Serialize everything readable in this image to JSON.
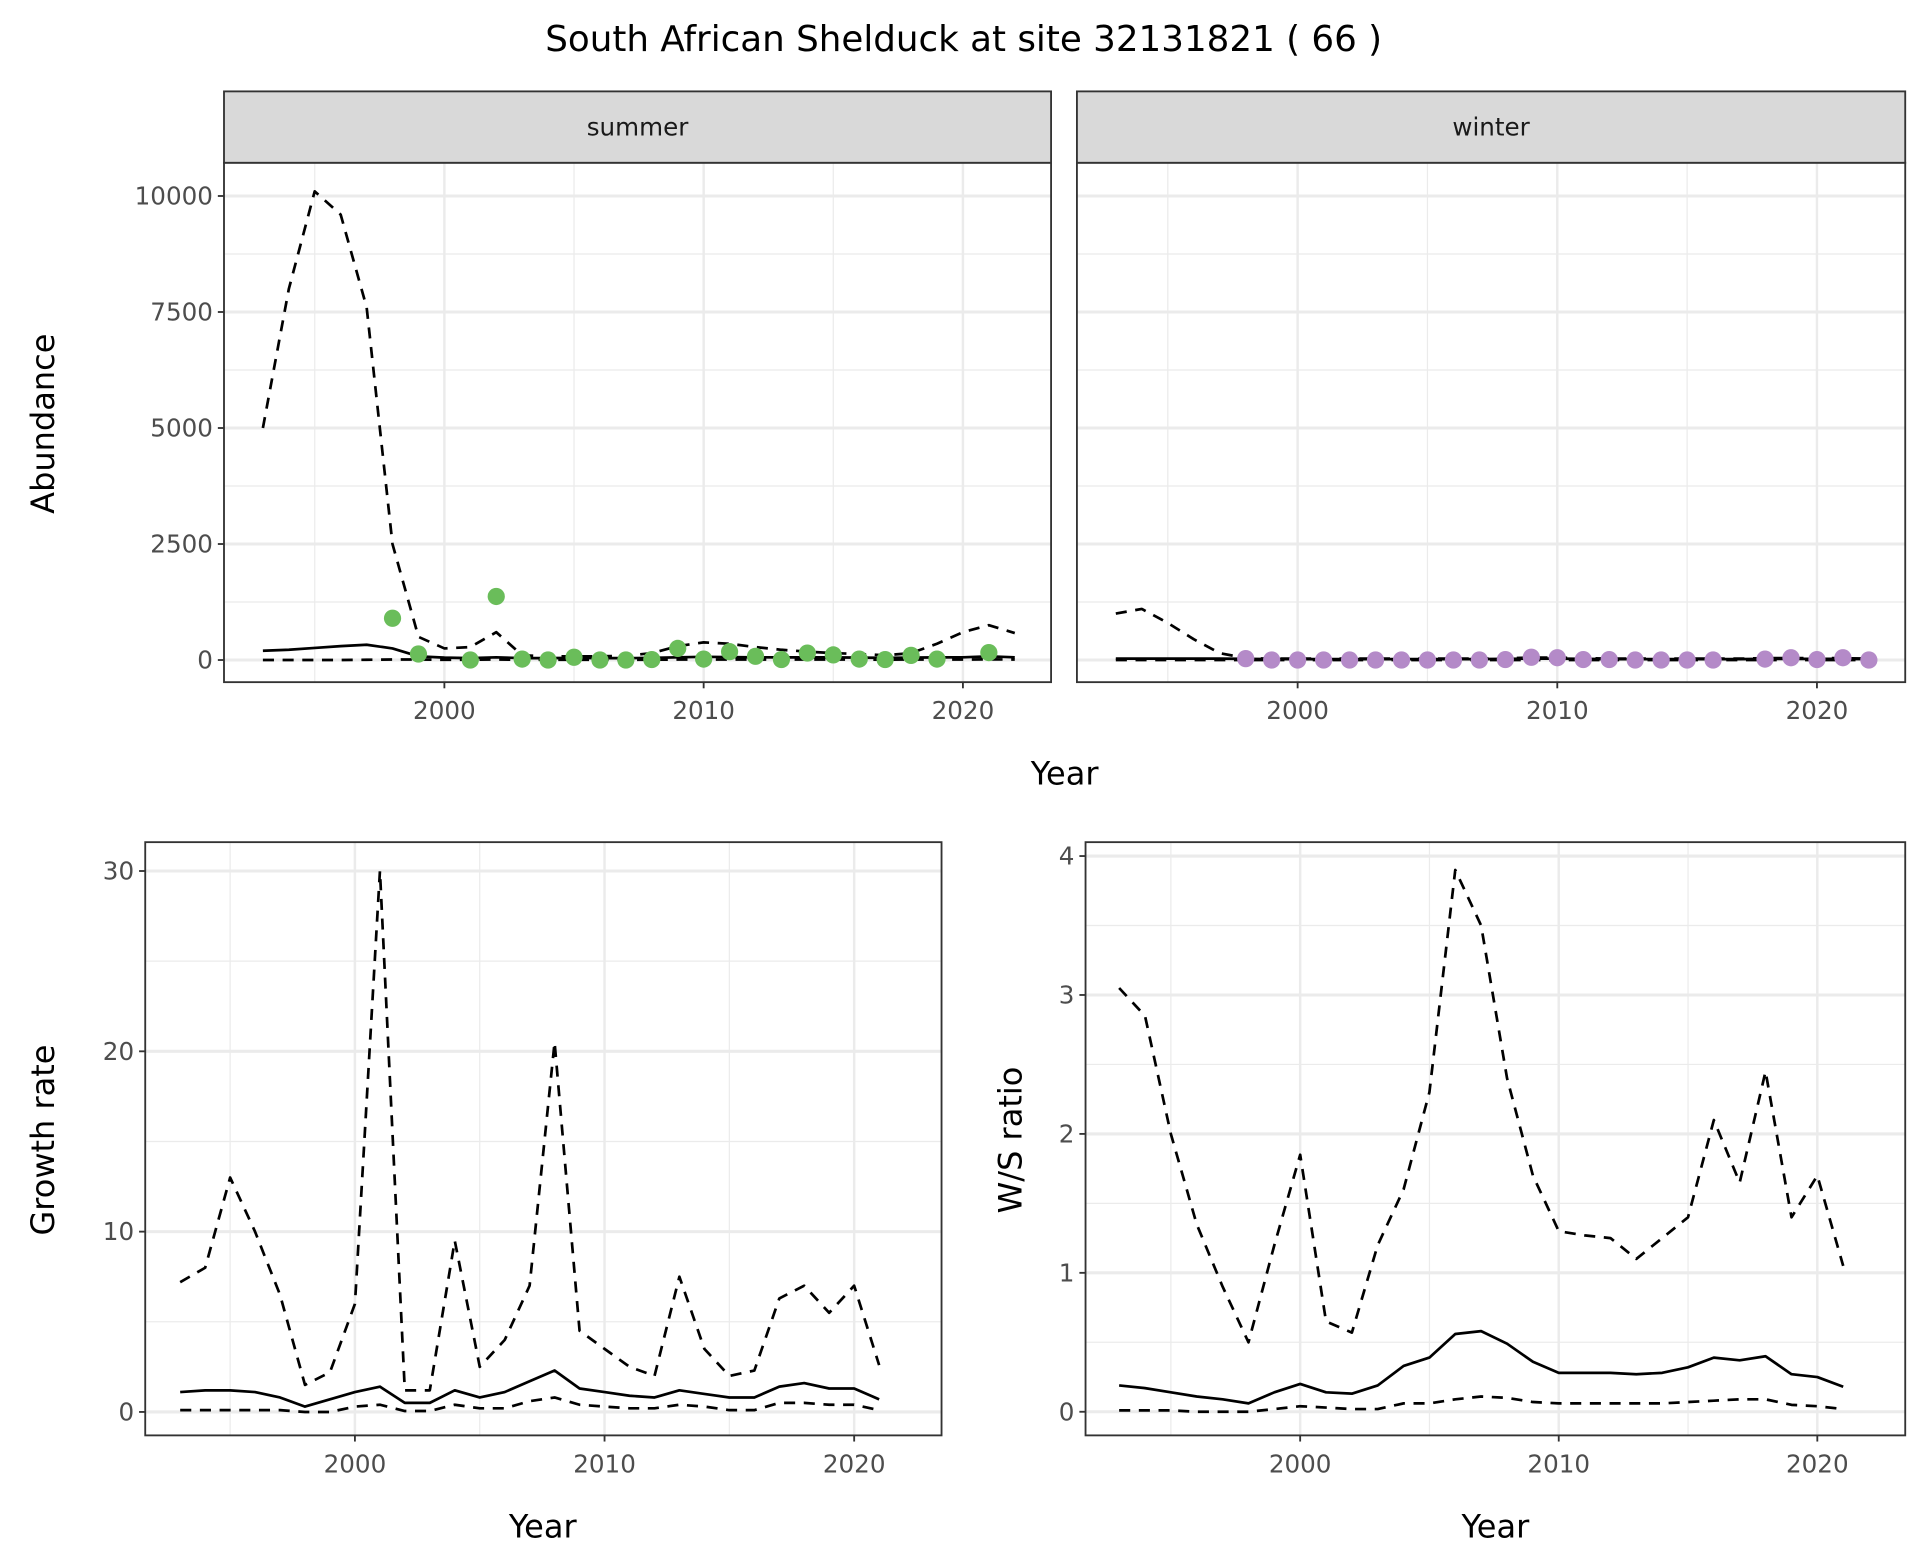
{
  "title": "South African Shelduck at site 32131821 ( 66 )",
  "colors": {
    "summer_points": "#6abd5a",
    "winter_points": "#b48ac8",
    "strip_bg": "#d9d9d9",
    "grid": "#ebebeb",
    "line": "#000000"
  },
  "chart_data": [
    {
      "type": "line",
      "id": "abundance",
      "ylabel": "Abundance",
      "xlabel": "Year",
      "xlim": [
        1991.5,
        2023.4
      ],
      "ylim": [
        -477,
        10716
      ],
      "xticks": [
        2000,
        2010,
        2020
      ],
      "xticklabels": [
        "2000",
        "2010",
        "2020"
      ],
      "yticks": [
        0,
        2500,
        5000,
        7500,
        10000
      ],
      "yticklabels": [
        "0",
        "2500",
        "5000",
        "7500",
        "10000"
      ],
      "facets": [
        {
          "strip": "summer",
          "years": [
            1993,
            1994,
            1995,
            1996,
            1997,
            1998,
            1999,
            2000,
            2001,
            2002,
            2003,
            2004,
            2005,
            2006,
            2007,
            2008,
            2009,
            2010,
            2011,
            2012,
            2013,
            2014,
            2015,
            2016,
            2017,
            2018,
            2019,
            2020,
            2021,
            2022
          ],
          "mean": [
            200,
            220,
            260,
            300,
            330,
            250,
            80,
            50,
            40,
            60,
            40,
            40,
            45,
            40,
            40,
            45,
            60,
            70,
            65,
            60,
            55,
            55,
            55,
            50,
            45,
            50,
            55,
            60,
            80,
            60
          ],
          "upper": [
            5000,
            8000,
            10100,
            9600,
            7600,
            2500,
            500,
            250,
            280,
            600,
            100,
            80,
            80,
            80,
            90,
            150,
            300,
            380,
            350,
            280,
            220,
            180,
            150,
            130,
            100,
            150,
            350,
            600,
            750,
            580
          ],
          "lower": [
            0,
            0,
            0,
            0,
            5,
            10,
            10,
            5,
            5,
            10,
            5,
            5,
            5,
            5,
            5,
            5,
            10,
            10,
            10,
            10,
            10,
            10,
            10,
            10,
            5,
            10,
            10,
            10,
            15,
            10
          ],
          "points": {
            "years": [
              1998,
              1999,
              2001,
              2002,
              2003,
              2004,
              2005,
              2006,
              2007,
              2008,
              2009,
              2010,
              2011,
              2012,
              2013,
              2014,
              2015,
              2016,
              2017,
              2018,
              2019,
              2021
            ],
            "values": [
              900,
              130,
              0,
              1370,
              20,
              0,
              60,
              0,
              0,
              10,
              250,
              20,
              180,
              80,
              10,
              150,
              110,
              20,
              10,
              100,
              20,
              160
            ]
          }
        },
        {
          "strip": "winter",
          "years": [
            1993,
            1994,
            1995,
            1996,
            1997,
            1998,
            1999,
            2000,
            2001,
            2002,
            2003,
            2004,
            2005,
            2006,
            2007,
            2008,
            2009,
            2010,
            2011,
            2012,
            2013,
            2014,
            2015,
            2016,
            2017,
            2018,
            2019,
            2020,
            2021,
            2022
          ],
          "mean": [
            30,
            30,
            30,
            30,
            30,
            25,
            20,
            20,
            20,
            20,
            20,
            20,
            20,
            20,
            20,
            25,
            30,
            30,
            25,
            20,
            20,
            20,
            20,
            20,
            20,
            25,
            25,
            25,
            25,
            20
          ],
          "upper": [
            1000,
            1100,
            800,
            450,
            150,
            40,
            30,
            30,
            30,
            30,
            30,
            30,
            30,
            30,
            30,
            40,
            50,
            50,
            40,
            30,
            30,
            30,
            30,
            30,
            30,
            40,
            40,
            40,
            40,
            30
          ],
          "lower": [
            0,
            0,
            0,
            0,
            0,
            0,
            0,
            0,
            0,
            0,
            0,
            0,
            0,
            0,
            0,
            0,
            0,
            0,
            0,
            0,
            0,
            0,
            0,
            0,
            0,
            0,
            0,
            0,
            0,
            0
          ],
          "points": {
            "years": [
              1998,
              1999,
              2000,
              2001,
              2002,
              2003,
              2004,
              2005,
              2006,
              2007,
              2008,
              2009,
              2010,
              2011,
              2012,
              2013,
              2014,
              2015,
              2016,
              2018,
              2019,
              2020,
              2021,
              2022
            ],
            "values": [
              30,
              0,
              0,
              0,
              0,
              0,
              0,
              0,
              0,
              0,
              10,
              60,
              50,
              10,
              10,
              0,
              0,
              0,
              0,
              20,
              50,
              10,
              50,
              0
            ]
          }
        }
      ]
    },
    {
      "type": "line",
      "id": "growth",
      "ylabel": "Growth rate",
      "xlabel": "Year",
      "xlim": [
        1991.6,
        2023.5
      ],
      "ylim": [
        -1.3,
        31.6
      ],
      "xticks": [
        2000,
        2010,
        2020
      ],
      "xticklabels": [
        "2000",
        "2010",
        "2020"
      ],
      "yticks": [
        0,
        10,
        20,
        30
      ],
      "yticklabels": [
        "0",
        "10",
        "20",
        "30"
      ],
      "years": [
        1993,
        1994,
        1995,
        1996,
        1997,
        1998,
        1999,
        2000,
        2001,
        2002,
        2003,
        2004,
        2005,
        2006,
        2007,
        2008,
        2009,
        2010,
        2011,
        2012,
        2013,
        2014,
        2015,
        2016,
        2017,
        2018,
        2019,
        2020,
        2021
      ],
      "upper": [
        7.2,
        8,
        13,
        10,
        6.5,
        1.5,
        2.2,
        6,
        30,
        1.2,
        1.2,
        9.5,
        2.5,
        4,
        7,
        20.5,
        4.5,
        3.5,
        2.5,
        2,
        7.5,
        3.5,
        2,
        2.3,
        6.3,
        7,
        5.5,
        7,
        2.6
      ],
      "mean": [
        1.1,
        1.2,
        1.2,
        1.1,
        0.8,
        0.3,
        0.7,
        1.1,
        1.4,
        0.5,
        0.5,
        1.2,
        0.8,
        1.1,
        1.7,
        2.3,
        1.3,
        1.1,
        0.9,
        0.8,
        1.2,
        1.0,
        0.8,
        0.8,
        1.4,
        1.6,
        1.3,
        1.3,
        0.7
      ],
      "lower": [
        0.1,
        0.1,
        0.1,
        0.1,
        0.1,
        0.0,
        0.0,
        0.3,
        0.4,
        0.05,
        0.05,
        0.4,
        0.2,
        0.2,
        0.6,
        0.8,
        0.4,
        0.3,
        0.2,
        0.2,
        0.4,
        0.3,
        0.1,
        0.1,
        0.5,
        0.5,
        0.4,
        0.4,
        0.1
      ]
    },
    {
      "type": "line",
      "id": "ratio",
      "ylabel": "W/S ratio",
      "xlabel": "Year",
      "xlim": [
        1991.7,
        2023.4
      ],
      "ylim": [
        -0.17,
        4.1
      ],
      "xticks": [
        2000,
        2010,
        2020
      ],
      "xticklabels": [
        "2000",
        "2010",
        "2020"
      ],
      "yticks": [
        0,
        1,
        2,
        3,
        4
      ],
      "yticklabels": [
        "0",
        "1",
        "2",
        "3",
        "4"
      ],
      "years": [
        1993,
        1994,
        1995,
        1996,
        1997,
        1998,
        1999,
        2000,
        2001,
        2002,
        2003,
        2004,
        2005,
        2006,
        2007,
        2008,
        2009,
        2010,
        2011,
        2012,
        2013,
        2014,
        2015,
        2016,
        2017,
        2018,
        2019,
        2020,
        2021
      ],
      "upper": [
        3.05,
        2.85,
        2.0,
        1.35,
        0.9,
        0.5,
        1.2,
        1.85,
        0.65,
        0.57,
        1.2,
        1.6,
        2.3,
        3.9,
        3.5,
        2.4,
        1.7,
        1.3,
        1.27,
        1.25,
        1.1,
        1.25,
        1.4,
        2.1,
        1.65,
        2.45,
        1.4,
        1.7,
        1.05
      ],
      "mean": [
        0.19,
        0.17,
        0.14,
        0.11,
        0.09,
        0.06,
        0.14,
        0.2,
        0.14,
        0.13,
        0.19,
        0.33,
        0.39,
        0.56,
        0.58,
        0.49,
        0.36,
        0.28,
        0.28,
        0.28,
        0.27,
        0.28,
        0.32,
        0.39,
        0.37,
        0.4,
        0.27,
        0.25,
        0.18
      ],
      "lower": [
        0.01,
        0.01,
        0.01,
        0.0,
        0.0,
        0.0,
        0.02,
        0.04,
        0.03,
        0.02,
        0.02,
        0.06,
        0.06,
        0.09,
        0.11,
        0.1,
        0.07,
        0.06,
        0.06,
        0.06,
        0.06,
        0.06,
        0.07,
        0.08,
        0.09,
        0.09,
        0.05,
        0.04,
        0.02
      ]
    }
  ]
}
